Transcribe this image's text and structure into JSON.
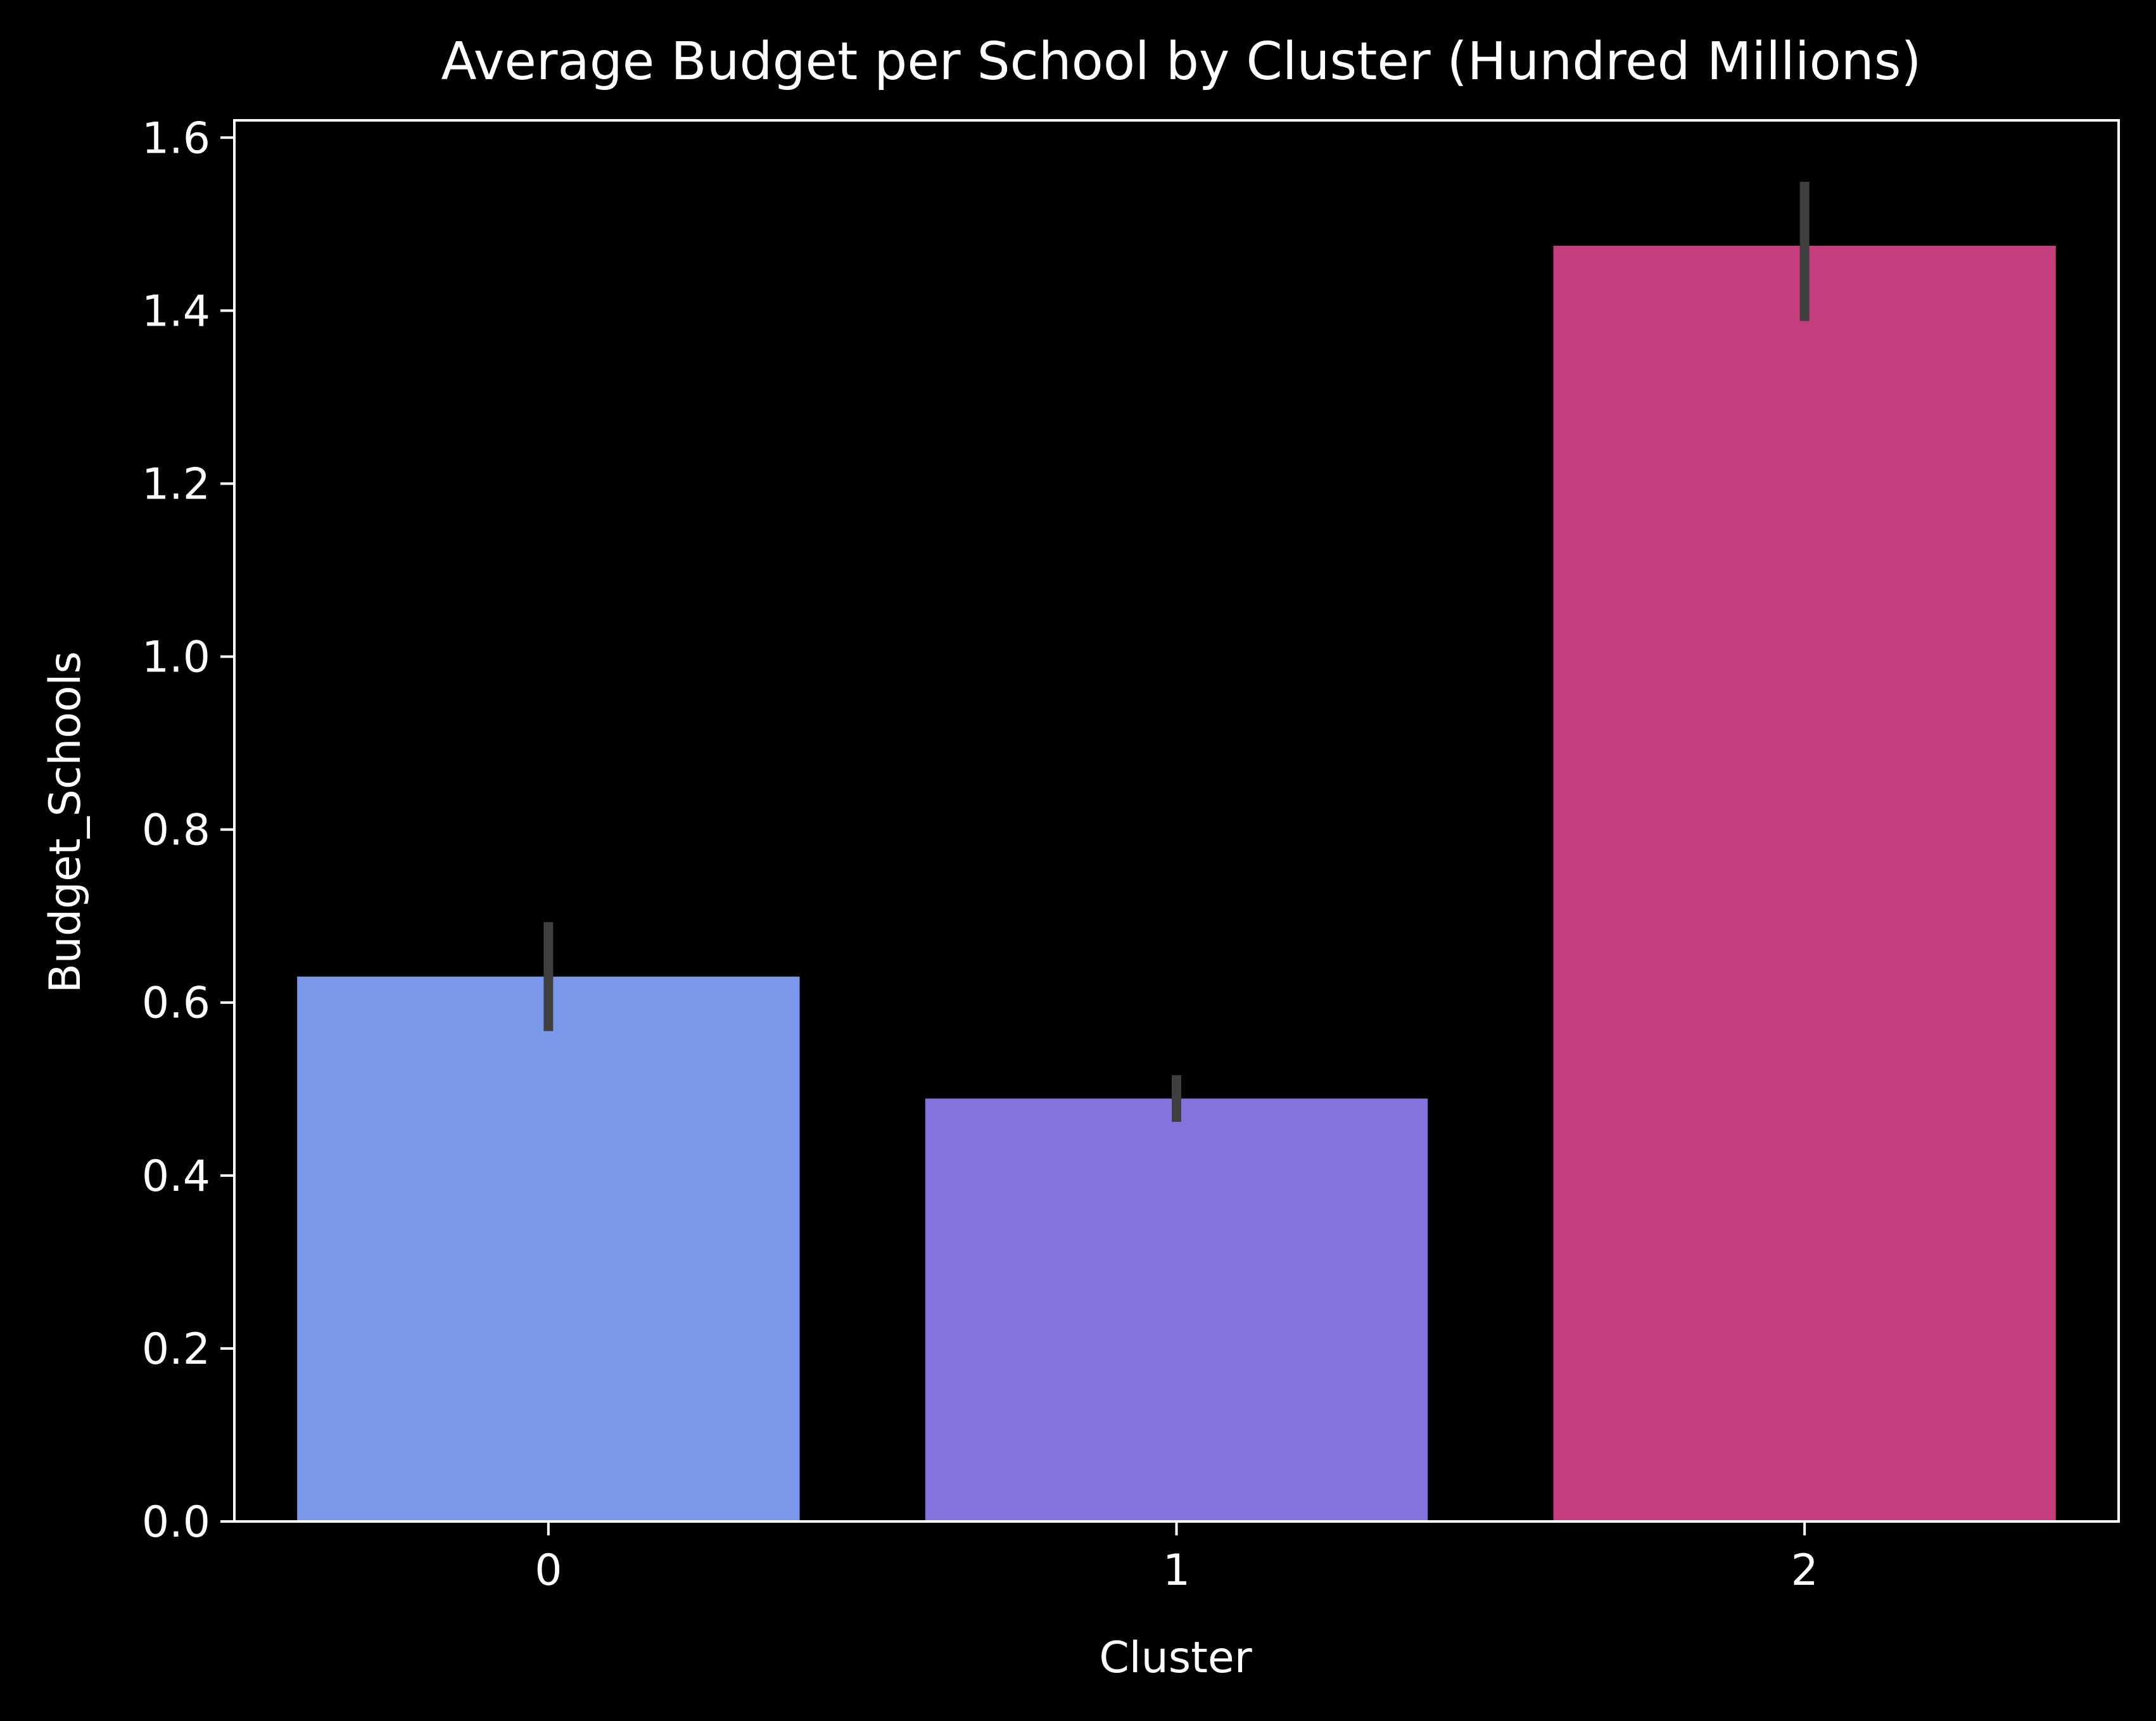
{
  "chart_data": {
    "type": "bar",
    "title": "Average Budget per School by Cluster (Hundred Millions)",
    "xlabel": "Cluster",
    "ylabel": "Budget_Schools",
    "categories": [
      "0",
      "1",
      "2"
    ],
    "values": [
      0.63,
      0.489,
      1.475
    ],
    "error_bars": [
      {
        "low": 0.567,
        "high": 0.693
      },
      {
        "low": 0.462,
        "high": 0.516
      },
      {
        "low": 1.388,
        "high": 1.549
      }
    ],
    "colors": [
      "#7b97ea",
      "#8572dd",
      "#c43d7c"
    ],
    "error_bar_color": "#3f3f3f",
    "ylim": [
      0,
      1.62
    ],
    "yticks": [
      "0.0",
      "0.2",
      "0.4",
      "0.6",
      "0.8",
      "1.0",
      "1.2",
      "1.4",
      "1.6"
    ],
    "ytick_values": [
      0,
      0.2,
      0.4,
      0.6,
      0.8,
      1.0,
      1.2,
      1.4,
      1.6
    ],
    "grid": false,
    "legend": "none",
    "background": "#000000",
    "foreground": "#ffffff"
  }
}
